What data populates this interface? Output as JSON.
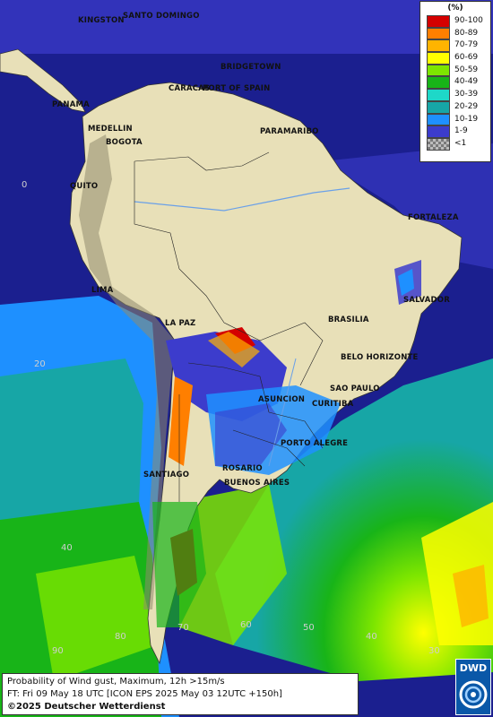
{
  "legend": {
    "unit": "(%)",
    "items": [
      {
        "label": "90-100",
        "color": "#d40000"
      },
      {
        "label": "80-89",
        "color": "#ff7f00"
      },
      {
        "label": "70-79",
        "color": "#ffb400"
      },
      {
        "label": "60-69",
        "color": "#ffff00"
      },
      {
        "label": "50-59",
        "color": "#7de600"
      },
      {
        "label": "40-49",
        "color": "#18b418"
      },
      {
        "label": "30-39",
        "color": "#1ed8c8"
      },
      {
        "label": "20-29",
        "color": "#17a6a6"
      },
      {
        "label": "10-19",
        "color": "#1e90ff"
      },
      {
        "label": "1-9",
        "color": "#3c3ccc"
      },
      {
        "label": "<1",
        "color": "checkerboard"
      }
    ]
  },
  "cities": {
    "kingston": "KINGSTON",
    "santo_domingo": "SANTO DOMINGO",
    "bridgetown": "BRIDGETOWN",
    "caracas": "CARACAS",
    "port_of_spain": "PORT OF SPAIN",
    "panama": "PANAMA",
    "medellin": "MEDELLIN",
    "bogota": "BOGOTA",
    "paramaribo": "PARAMARIBO",
    "quito": "QUITO",
    "fortaleza": "FORTALEZA",
    "lima": "LIMA",
    "salvador": "SALVADOR",
    "la_paz": "LA PAZ",
    "brasilia": "BRASILIA",
    "belo_horizonte": "BELO HORIZONTE",
    "sao_paulo": "SAO PAULO",
    "asuncion": "ASUNCION",
    "curitiba": "CURITIBA",
    "porto_alegre": "PORTO ALEGRE",
    "rosario": "ROSARIO",
    "buenos_aires": "BUENOS AIRES",
    "santiago": "SANTIAGO"
  },
  "grid_labels": {
    "lat_0": "0",
    "lat_20": "20",
    "lat_40": "40",
    "lon_90": "90",
    "lon_80": "80",
    "lon_70": "70",
    "lon_60": "60",
    "lon_50": "50",
    "lon_40": "40",
    "lon_30": "30"
  },
  "info": {
    "product": "Probability of Wind gust, Maximum, 12h >15m/s",
    "forecast_time": "FT: Fri 09 May 18 UTC [ICON EPS 2025 May 03 12UTC +150h]",
    "copyright": "©2025 Deutscher Wetterdienst"
  },
  "logo": {
    "text": "DWD"
  },
  "colors": {
    "land": "#e8e0b8",
    "ocean_low": "#1b1f8f",
    "ocean_mid": "#3c3ccc"
  }
}
